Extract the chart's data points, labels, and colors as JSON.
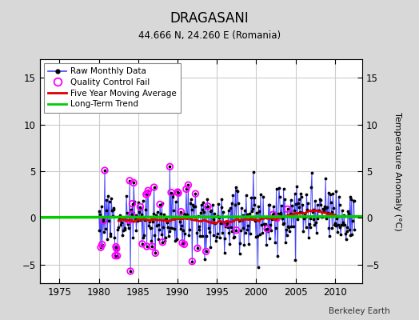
{
  "title": "DRAGASANI",
  "subtitle": "44.666 N, 24.260 E (Romania)",
  "ylabel": "Temperature Anomaly (°C)",
  "footer": "Berkeley Earth",
  "xlim": [
    1972.5,
    2013.5
  ],
  "ylim": [
    -7,
    17
  ],
  "yticks": [
    -5,
    0,
    5,
    10,
    15
  ],
  "xticks": [
    1975,
    1980,
    1985,
    1990,
    1995,
    2000,
    2005,
    2010
  ],
  "bg_color": "#d8d8d8",
  "plot_bg_color": "#ffffff",
  "raw_line_color": "#4444ff",
  "raw_dot_color": "#000000",
  "qc_color": "#ff00ff",
  "moving_avg_color": "#dd0000",
  "trend_color": "#00cc00",
  "grid_color": "#cccccc",
  "data_start": 1980.0,
  "data_end": 2012.5,
  "n_months": 390,
  "seed": 12,
  "noise_std": 1.8
}
